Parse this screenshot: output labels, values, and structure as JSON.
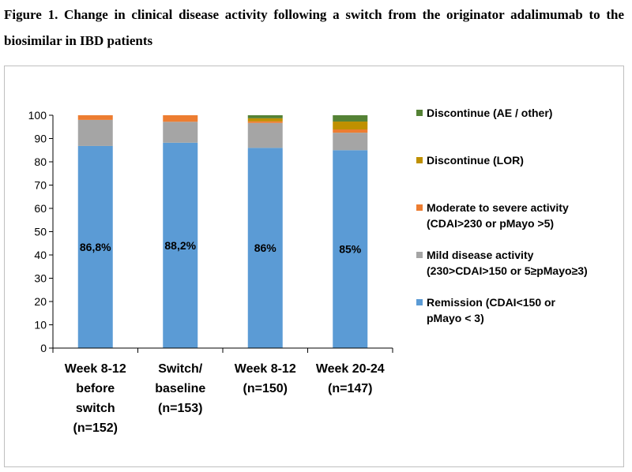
{
  "chart_data": {
    "type": "stacked_bar",
    "title": "Figure 1. Change in clinical disease activity following a switch from the originator adalimumab to the biosimilar in IBD patients",
    "categories": [
      "Week 8-12\nbefore\nswitch\n(n=152)",
      "Switch/\nbaseline\n(n=153)",
      "Week 8-12\n(n=150)",
      "Week 20-24\n(n=147)"
    ],
    "series": [
      {
        "name": "Remission (CDAI<150 or\npMayo < 3)",
        "color": "#5b9bd5",
        "values": [
          86.8,
          88.2,
          86,
          85
        ],
        "value_labels": [
          "86,8%",
          "88,2%",
          "86%",
          "85%"
        ]
      },
      {
        "name": "Mild disease activity\n(230>CDAI>150 or 5≥pMayo≥3)",
        "color": "#a5a5a5",
        "values": [
          11.2,
          9,
          10.7,
          7.5
        ]
      },
      {
        "name": "Moderate to severe activity\n(CDAI>230 or pMayo >5)",
        "color": "#ed7d31",
        "values": [
          2,
          2.8,
          0.7,
          1.4
        ]
      },
      {
        "name": "Discontinue (LOR)",
        "color": "#bf9000",
        "values": [
          0,
          0,
          1.3,
          3.4
        ]
      },
      {
        "name": "Discontinue (AE / other)",
        "color": "#548235",
        "values": [
          0,
          0,
          1.3,
          2.7
        ]
      }
    ],
    "ylim": [
      0,
      100
    ],
    "yticks": [
      0,
      10,
      20,
      30,
      40,
      50,
      60,
      70,
      80,
      90,
      100
    ],
    "legend": "right"
  }
}
